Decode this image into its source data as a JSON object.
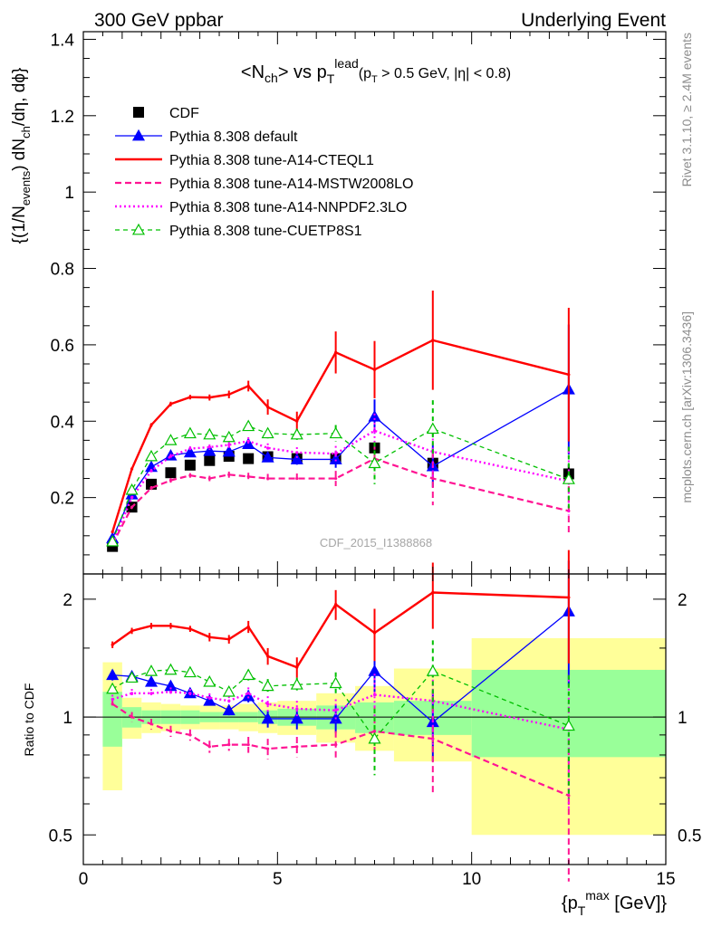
{
  "header": {
    "left": "300 GeV ppbar",
    "right": "Underlying Event"
  },
  "side_labels": {
    "rivet": "Rivet 3.1.10, ≥ 2.4M events",
    "mcplots": "mcplots.cern.ch [arXiv:1306.3436]"
  },
  "chart_data": [
    {
      "type": "line",
      "panel": "main",
      "title": "<N_ch> vs p_T^lead (p_T > 0.5 GeV, |η| < 0.8)",
      "ylabel": "{(1/N_events) dN_ch/dη, dϕ}",
      "xlabel": "",
      "watermark": "CDF_2015_I1388868",
      "xlim": [
        0,
        15
      ],
      "ylim": [
        0,
        1.42
      ],
      "yticks": [
        "0.2",
        "0.4",
        "0.6",
        "0.8",
        "1",
        "1.2",
        "1.4"
      ],
      "legend_position": "top-left",
      "x": [
        0.75,
        1.25,
        1.75,
        2.25,
        2.75,
        3.25,
        3.75,
        4.25,
        4.75,
        5.5,
        6.5,
        7.5,
        9.0,
        12.5
      ],
      "series": [
        {
          "name": "CDF",
          "style": "data",
          "color": "#000000",
          "values": [
            0.072,
            0.175,
            0.235,
            0.265,
            0.285,
            0.297,
            0.308,
            0.302,
            0.307,
            0.302,
            0.302,
            0.33,
            0.29,
            0.262
          ],
          "errors": [
            0.004,
            0.006,
            0.007,
            0.007,
            0.008,
            0.008,
            0.009,
            0.009,
            0.01,
            0.01,
            0.012,
            0.015,
            0.02,
            0.025
          ]
        },
        {
          "name": "Pythia 8.308 default",
          "style": "solid-triangle",
          "color": "#0000ff",
          "values": [
            0.093,
            0.208,
            0.28,
            0.31,
            0.318,
            0.322,
            0.32,
            0.34,
            0.305,
            0.3,
            0.3,
            0.412,
            0.282,
            0.483
          ],
          "errors": [
            0.003,
            0.004,
            0.005,
            0.006,
            0.006,
            0.007,
            0.008,
            0.01,
            0.012,
            0.014,
            0.022,
            0.045,
            0.055,
            0.17
          ]
        },
        {
          "name": "Pythia 8.308 tune-A14-CTEQL1",
          "style": "solid",
          "color": "#ff0000",
          "values": [
            0.11,
            0.275,
            0.39,
            0.445,
            0.463,
            0.462,
            0.47,
            0.492,
            0.437,
            0.4,
            0.58,
            0.535,
            0.612,
            0.522
          ],
          "errors": [
            0.003,
            0.004,
            0.005,
            0.006,
            0.006,
            0.008,
            0.01,
            0.014,
            0.02,
            0.025,
            0.055,
            0.075,
            0.13,
            0.175
          ]
        },
        {
          "name": "Pythia 8.308 tune-A14-MSTW2008LO",
          "style": "dashed",
          "color": "#ff1493",
          "values": [
            0.078,
            0.175,
            0.225,
            0.245,
            0.258,
            0.25,
            0.26,
            0.255,
            0.25,
            0.25,
            0.25,
            0.302,
            0.25,
            0.165
          ],
          "errors": [
            0.003,
            0.004,
            0.005,
            0.006,
            0.006,
            0.007,
            0.008,
            0.01,
            0.012,
            0.013,
            0.02,
            0.04,
            0.07,
            0.065
          ]
        },
        {
          "name": "Pythia 8.308 tune-A14-NNPDF2.3LO",
          "style": "dotted",
          "color": "#ff00ff",
          "values": [
            0.08,
            0.2,
            0.27,
            0.308,
            0.328,
            0.332,
            0.338,
            0.348,
            0.33,
            0.318,
            0.315,
            0.375,
            0.32,
            0.243
          ],
          "errors": [
            0.003,
            0.004,
            0.005,
            0.006,
            0.006,
            0.007,
            0.008,
            0.01,
            0.012,
            0.014,
            0.02,
            0.045,
            0.07,
            0.09
          ]
        },
        {
          "name": "Pythia 8.308 tune-CUETP8S1",
          "style": "dashed-open-triangle",
          "color": "#00c000",
          "values": [
            0.085,
            0.22,
            0.308,
            0.35,
            0.368,
            0.365,
            0.358,
            0.387,
            0.368,
            0.365,
            0.368,
            0.29,
            0.38,
            0.248
          ],
          "errors": [
            0.003,
            0.004,
            0.005,
            0.006,
            0.006,
            0.007,
            0.008,
            0.01,
            0.013,
            0.014,
            0.022,
            0.055,
            0.075,
            0.085
          ]
        }
      ]
    },
    {
      "type": "line",
      "panel": "ratio",
      "ylabel": "Ratio to CDF",
      "xlabel": "{p_T^max [GeV]}",
      "xlim": [
        0,
        15
      ],
      "ylim": [
        0.42,
        2.32
      ],
      "xticks": [
        "0",
        "5",
        "10",
        "15"
      ],
      "yticks": [
        "0.5",
        "1",
        "2"
      ],
      "x": [
        0.75,
        1.25,
        1.75,
        2.25,
        2.75,
        3.25,
        3.75,
        4.25,
        4.75,
        5.5,
        6.5,
        7.5,
        9.0,
        12.5
      ],
      "bands": {
        "bin_edges": [
          0.5,
          1.0,
          1.5,
          2.0,
          2.5,
          3.0,
          3.5,
          4.0,
          4.5,
          5.0,
          6.0,
          7.0,
          8.0,
          10.0,
          15.0
        ],
        "stat_low": [
          0.84,
          0.94,
          0.96,
          0.96,
          0.96,
          0.97,
          0.97,
          0.97,
          0.96,
          0.95,
          0.93,
          0.91,
          0.9,
          0.79
        ],
        "stat_high": [
          1.16,
          1.06,
          1.04,
          1.04,
          1.04,
          1.03,
          1.03,
          1.03,
          1.04,
          1.05,
          1.07,
          1.09,
          1.1,
          1.32
        ],
        "total_low": [
          0.65,
          0.88,
          0.91,
          0.92,
          0.93,
          0.93,
          0.93,
          0.92,
          0.91,
          0.9,
          0.86,
          0.82,
          0.77,
          0.5
        ],
        "total_high": [
          1.38,
          1.12,
          1.09,
          1.08,
          1.07,
          1.07,
          1.07,
          1.08,
          1.09,
          1.1,
          1.15,
          1.2,
          1.33,
          1.59
        ]
      },
      "series": [
        {
          "name": "Pythia 8.308 default",
          "color": "#0000ff",
          "style": "solid-triangle",
          "values": [
            1.28,
            1.27,
            1.23,
            1.2,
            1.15,
            1.1,
            1.04,
            1.13,
            0.99,
            0.99,
            0.99,
            1.31,
            0.97,
            1.86
          ],
          "errors": [
            0.04,
            0.03,
            0.03,
            0.03,
            0.03,
            0.03,
            0.03,
            0.04,
            0.05,
            0.06,
            0.08,
            0.15,
            0.2,
            0.65
          ]
        },
        {
          "name": "Pythia 8.308 tune-A14-CTEQL1",
          "color": "#ff0000",
          "style": "solid",
          "values": [
            1.53,
            1.66,
            1.71,
            1.71,
            1.68,
            1.6,
            1.58,
            1.7,
            1.43,
            1.34,
            1.94,
            1.64,
            2.08,
            2.02
          ],
          "errors": [
            0.03,
            0.03,
            0.03,
            0.03,
            0.03,
            0.04,
            0.04,
            0.06,
            0.07,
            0.08,
            0.17,
            0.25,
            0.4,
            0.65
          ]
        },
        {
          "name": "Pythia 8.308 tune-A14-MSTW2008LO",
          "color": "#ff1493",
          "style": "dashed",
          "values": [
            1.08,
            1.0,
            0.96,
            0.92,
            0.9,
            0.84,
            0.85,
            0.85,
            0.83,
            0.84,
            0.85,
            0.92,
            0.88,
            0.63
          ],
          "errors": [
            0.03,
            0.03,
            0.03,
            0.03,
            0.03,
            0.03,
            0.03,
            0.04,
            0.05,
            0.05,
            0.07,
            0.14,
            0.25,
            0.25
          ]
        },
        {
          "name": "Pythia 8.308 tune-A14-NNPDF2.3LO",
          "color": "#ff00ff",
          "style": "dotted",
          "values": [
            1.11,
            1.15,
            1.15,
            1.16,
            1.15,
            1.12,
            1.1,
            1.15,
            1.08,
            1.05,
            1.04,
            1.14,
            1.1,
            0.93
          ],
          "errors": [
            0.03,
            0.03,
            0.03,
            0.03,
            0.03,
            0.03,
            0.03,
            0.04,
            0.05,
            0.05,
            0.07,
            0.15,
            0.25,
            0.35
          ]
        },
        {
          "name": "Pythia 8.308 tune-CUETP8S1",
          "color": "#00c000",
          "style": "dashed-open-triangle",
          "values": [
            1.18,
            1.26,
            1.31,
            1.32,
            1.3,
            1.23,
            1.16,
            1.28,
            1.2,
            1.21,
            1.22,
            0.88,
            1.31,
            0.95
          ],
          "errors": [
            0.03,
            0.03,
            0.03,
            0.03,
            0.03,
            0.03,
            0.03,
            0.04,
            0.05,
            0.05,
            0.08,
            0.17,
            0.26,
            0.33
          ]
        }
      ]
    }
  ]
}
